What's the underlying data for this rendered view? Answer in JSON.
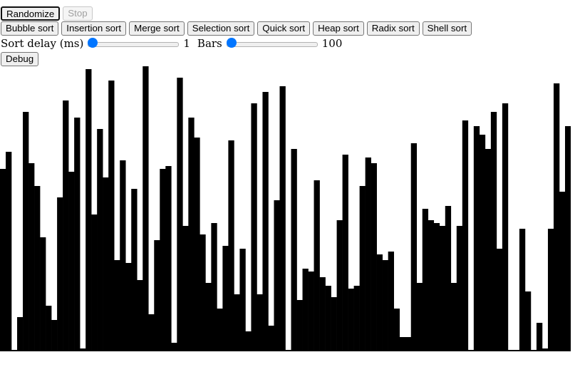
{
  "toolbar": {
    "randomize_label": "Randomize",
    "stop_label": "Stop"
  },
  "sort_buttons": {
    "bubble": "Bubble sort",
    "insertion": "Insertion sort",
    "merge": "Merge sort",
    "selection": "Selection sort",
    "quick": "Quick sort",
    "heap": "Heap sort",
    "radix": "Radix sort",
    "shell": "Shell sort"
  },
  "controls": {
    "delay_label": "Sort delay (ms)",
    "delay_value": "1",
    "delay_min": 1,
    "delay_max": 1000,
    "bars_label": "Bars",
    "bars_value": "100",
    "bars_min": 100,
    "bars_max": 1000
  },
  "debug_label": "Debug",
  "colors": {
    "bar": "#000000",
    "slider": "#0075ff"
  },
  "chart_data": {
    "type": "bar",
    "ylim": [
      0,
      100
    ],
    "values": [
      64,
      70,
      0,
      12,
      84,
      66,
      58,
      40,
      16,
      11,
      54,
      88,
      63,
      82,
      1,
      99,
      48,
      78,
      61,
      95,
      32,
      67,
      31,
      57,
      25,
      100,
      13,
      39,
      64,
      65,
      3,
      96,
      44,
      82,
      75,
      41,
      24,
      45,
      15,
      37,
      74,
      20,
      36,
      7,
      87,
      20,
      91,
      9,
      53,
      93,
      0,
      71,
      18,
      29,
      28,
      60,
      26,
      23,
      19,
      46,
      69,
      22,
      23,
      58,
      68,
      66,
      34,
      32,
      35,
      15,
      5,
      5,
      73,
      24,
      50,
      46,
      45,
      44,
      51,
      24,
      44,
      81,
      0,
      79,
      76,
      71,
      84,
      36,
      87,
      0,
      0,
      43,
      21,
      0,
      10,
      1,
      43,
      94,
      56,
      79
    ]
  }
}
